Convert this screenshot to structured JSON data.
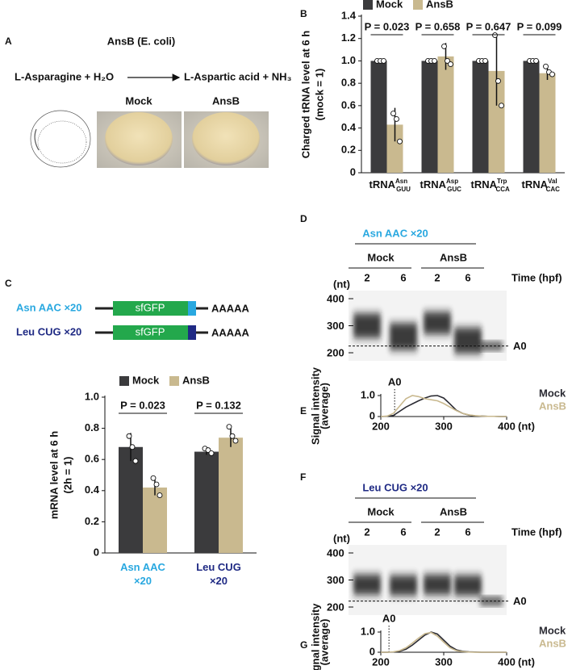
{
  "panel_labels": [
    "A",
    "B",
    "C",
    "D",
    "E",
    "F",
    "G"
  ],
  "panel_a": {
    "enzyme": "AnsB (E. coli)",
    "substrate": "L-Asparagine + H₂O",
    "product": "L-Aspartic acid + NH₃",
    "image_labels": [
      "Mock",
      "AnsB"
    ]
  },
  "panel_c": {
    "constructs": [
      {
        "name": "Asn AAC ×20",
        "color": "#29a8e0",
        "gene": "sfGFP",
        "tail": "AAAAA"
      },
      {
        "name": "Leu CUG ×20",
        "color": "#1f2a84",
        "gene": "sfGFP",
        "tail": "AAAAA"
      }
    ]
  },
  "gels": [
    {
      "title": "Asn AAC ×20",
      "title_color": "#29a8e0",
      "groups": [
        "Mock",
        "AnsB"
      ],
      "lanes": [
        "2",
        "6",
        "2",
        "6"
      ],
      "time_label": "Time (hpf)",
      "unit": "(nt)",
      "size_labels": [
        "400",
        "300",
        "200"
      ],
      "marker": "A0"
    },
    {
      "title": "Leu CUG ×20",
      "title_color": "#1f2a84",
      "groups": [
        "Mock",
        "AnsB"
      ],
      "lanes": [
        "2",
        "6",
        "2",
        "6"
      ],
      "time_label": "Time (hpf)",
      "unit": "(nt)",
      "size_labels": [
        "400",
        "300",
        "200"
      ],
      "marker": "A0"
    }
  ],
  "chart_data": [
    {
      "type": "bar",
      "y_label": [
        "Charged tRNA level at 6 h",
        "(mock = 1)"
      ],
      "categories": [
        {
          "base": "tRNA",
          "sup": "Asn",
          "sub": "GUU"
        },
        {
          "base": "tRNA",
          "sup": "Asp",
          "sub": "GUC"
        },
        {
          "base": "tRNA",
          "sup": "Trp",
          "sub": "CCA"
        },
        {
          "base": "tRNA",
          "sup": "Val",
          "sub": "CAC"
        }
      ],
      "series": [
        {
          "name": "Mock",
          "color": "#3b3b3d",
          "values": [
            1,
            1,
            1,
            1
          ],
          "points": [
            [
              1,
              1,
              1
            ],
            [
              1,
              1,
              1
            ],
            [
              1,
              1,
              1
            ],
            [
              1,
              1,
              1
            ]
          ]
        },
        {
          "name": "AnsB",
          "color": "#c9b98f",
          "values": [
            0.43,
            1.04,
            0.91,
            0.89
          ],
          "errors": [
            0.15,
            0.12,
            0.31,
            0.06
          ],
          "points": [
            [
              0.53,
              0.48,
              0.28
            ],
            [
              1.13,
              1.0,
              0.97
            ],
            [
              1.23,
              0.82,
              0.6
            ],
            [
              0.95,
              0.9,
              0.88
            ]
          ]
        }
      ],
      "p_values": [
        "P = 0.023",
        "P = 0.658",
        "P = 0.647",
        "P = 0.099"
      ],
      "ylim": [
        0,
        1.4
      ],
      "yticks": [
        0,
        0.2,
        0.4,
        0.6,
        0.8,
        {
          "value": 1,
          "label": "1.0"
        },
        1.2,
        1.4
      ]
    },
    {
      "type": "bar",
      "y_label": [
        "mRNA level  at 6 h",
        "(2h = 1)"
      ],
      "categories": [
        "Asn AAC ×20",
        "Leu CUG ×20"
      ],
      "category_colors": [
        "#29a8e0",
        "#1f2a84"
      ],
      "series": [
        {
          "name": "Mock",
          "color": "#3b3b3d",
          "values": [
            0.68,
            0.65
          ],
          "errors": [
            0.09,
            0.02
          ],
          "points": [
            [
              0.75,
              0.68,
              0.59
            ],
            [
              0.67,
              0.66,
              0.64
            ]
          ]
        },
        {
          "name": "AnsB",
          "color": "#c9b98f",
          "values": [
            0.42,
            0.74
          ],
          "errors": [
            0.05,
            0.06
          ],
          "points": [
            [
              0.48,
              0.44,
              0.37
            ],
            [
              0.81,
              0.75,
              0.72
            ]
          ]
        }
      ],
      "p_values": [
        "P = 0.023",
        "P = 0.132"
      ],
      "ylim": [
        0,
        1
      ],
      "yticks": [
        0,
        0.2,
        0.4,
        0.6,
        0.8,
        {
          "value": 1,
          "label": "1.0"
        }
      ]
    },
    {
      "type": "line",
      "y_label": [
        "Signal intensity",
        "(average)"
      ],
      "x_label": "(nt)",
      "x": [
        200,
        210,
        220,
        230,
        240,
        250,
        260,
        270,
        280,
        290,
        300,
        310,
        320,
        330,
        340,
        350,
        360,
        370,
        380,
        390,
        400
      ],
      "series": [
        {
          "name": "Mock",
          "color": "#2b2b33",
          "values": [
            0,
            0.01,
            0.05,
            0.25,
            0.45,
            0.6,
            0.75,
            0.88,
            0.98,
            1.0,
            0.88,
            0.6,
            0.3,
            0.15,
            0.07,
            0.03,
            0.02,
            0.01,
            0.01,
            0,
            0
          ]
        },
        {
          "name": "AnsB",
          "color": "#c9b98f",
          "values": [
            0,
            0.02,
            0.15,
            0.5,
            0.85,
            1.0,
            0.95,
            0.85,
            0.8,
            0.75,
            0.62,
            0.45,
            0.28,
            0.15,
            0.08,
            0.04,
            0.02,
            0.01,
            0.01,
            0,
            0
          ]
        }
      ],
      "annotation": {
        "text": "A0",
        "x": 222
      },
      "xlim": [
        200,
        400
      ],
      "xticks": [
        200,
        300,
        400
      ],
      "ylim": [
        0,
        1
      ],
      "yticks": [
        0,
        {
          "value": 1,
          "label": "1.0"
        }
      ]
    },
    {
      "type": "line",
      "y_label": [
        "Signal intensity",
        "(average)"
      ],
      "x_label": "(nt)",
      "x": [
        200,
        210,
        220,
        230,
        240,
        250,
        260,
        270,
        280,
        290,
        300,
        310,
        320,
        330,
        340,
        350,
        360,
        370,
        380,
        390,
        400
      ],
      "series": [
        {
          "name": "Mock",
          "color": "#2b2b33",
          "values": [
            0,
            0,
            0.01,
            0.05,
            0.15,
            0.35,
            0.6,
            0.85,
            1.0,
            0.9,
            0.6,
            0.3,
            0.12,
            0.05,
            0.02,
            0.01,
            0,
            0,
            0,
            0,
            0
          ]
        },
        {
          "name": "AnsB",
          "color": "#c9b98f",
          "values": [
            0,
            0,
            0.02,
            0.08,
            0.22,
            0.45,
            0.7,
            0.92,
            0.98,
            0.8,
            0.5,
            0.22,
            0.08,
            0.03,
            0.01,
            0,
            0,
            0,
            0,
            0,
            0
          ]
        }
      ],
      "annotation": {
        "text": "A0",
        "x": 213
      },
      "xlim": [
        200,
        400
      ],
      "xticks": [
        200,
        300,
        400
      ],
      "ylim": [
        0,
        1
      ],
      "yticks": [
        0,
        {
          "value": 1,
          "label": "1.0"
        }
      ]
    }
  ]
}
